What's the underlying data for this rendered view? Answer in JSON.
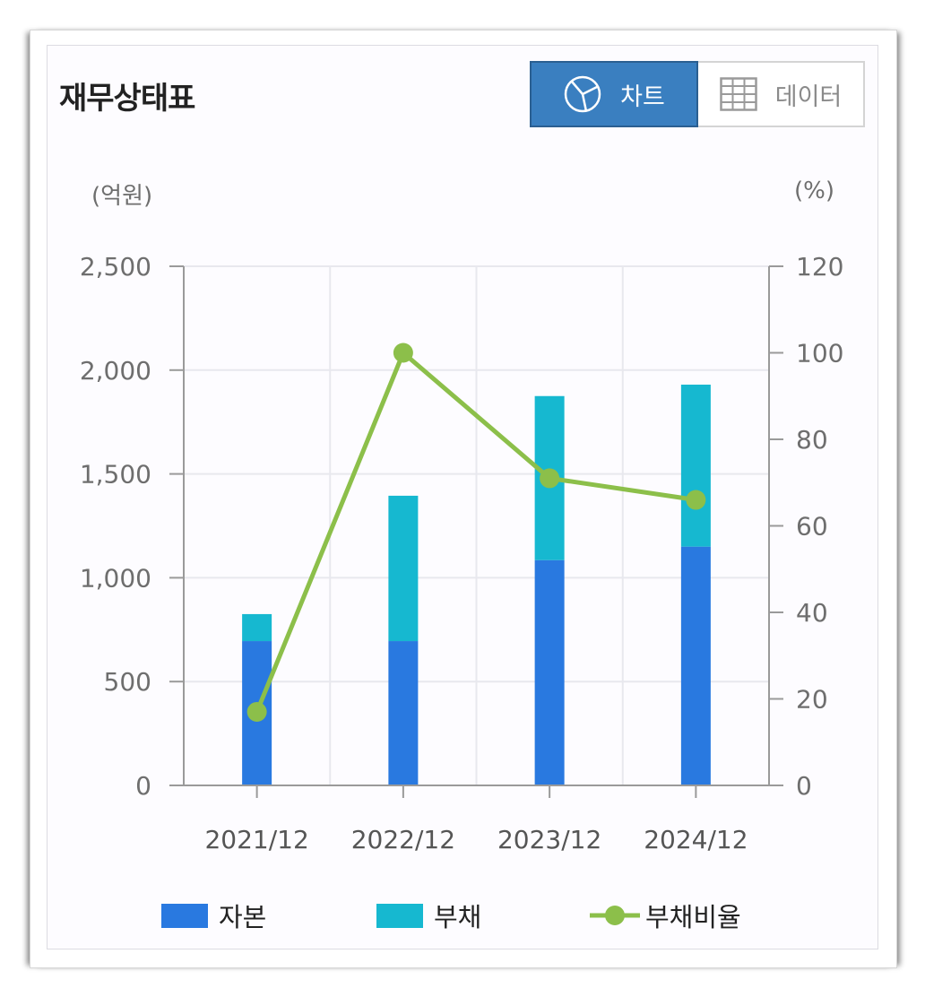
{
  "header": {
    "title": "재무상태표",
    "chart_button": "차트",
    "data_button": "데이터"
  },
  "icons": {
    "chart_button_icon": "pie-chart-icon",
    "data_button_icon": "table-grid-icon"
  },
  "colors": {
    "equity": "#2979e0",
    "debt": "#16b8d0",
    "ratio": "#8cbf4a",
    "active_button": "#3a7fc0"
  },
  "chart_data": {
    "type": "bar",
    "stacked": true,
    "categories": [
      "2021/12",
      "2022/12",
      "2023/12",
      "2024/12"
    ],
    "left_unit": "(억원)",
    "right_unit": "(%)",
    "left_ticks": [
      "0",
      "500",
      "1,000",
      "1,500",
      "2,000",
      "2,500"
    ],
    "right_ticks": [
      "0",
      "20",
      "40",
      "60",
      "80",
      "100",
      "120"
    ],
    "ylim": [
      0,
      2500
    ],
    "y2lim": [
      0,
      120
    ],
    "grid": true,
    "legend_position": "bottom",
    "series": [
      {
        "name": "자본",
        "type": "bar",
        "axis": "left",
        "values": [
          695,
          695,
          1085,
          1150
        ]
      },
      {
        "name": "부채",
        "type": "bar",
        "axis": "left",
        "values": [
          130,
          700,
          790,
          780
        ]
      },
      {
        "name": "부채비율",
        "type": "line",
        "axis": "right",
        "values": [
          17,
          100,
          71,
          66
        ]
      }
    ]
  }
}
